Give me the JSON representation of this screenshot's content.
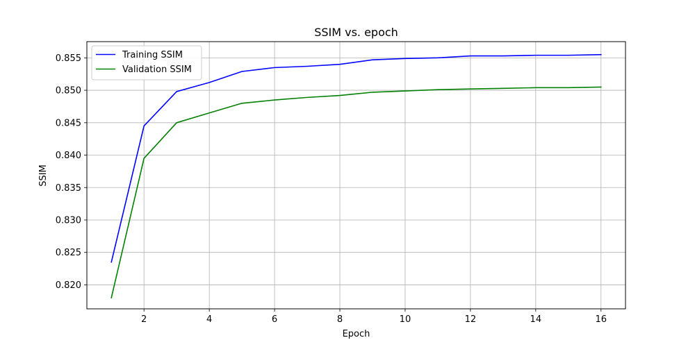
{
  "chart_data": {
    "type": "line",
    "title": "SSIM vs. epoch",
    "xlabel": "Epoch",
    "ylabel": "SSIM",
    "xlim": [
      0.25,
      16.75
    ],
    "ylim": [
      0.8163,
      0.8575
    ],
    "xticks": [
      2,
      4,
      6,
      8,
      10,
      12,
      14,
      16
    ],
    "yticks": [
      0.82,
      0.825,
      0.83,
      0.835,
      0.84,
      0.845,
      0.85,
      0.855
    ],
    "ytick_labels": [
      "0.820",
      "0.825",
      "0.830",
      "0.835",
      "0.840",
      "0.845",
      "0.850",
      "0.855"
    ],
    "grid": true,
    "legend_position": "top-left",
    "x": [
      1,
      2,
      3,
      4,
      5,
      6,
      7,
      8,
      9,
      10,
      11,
      12,
      13,
      14,
      15,
      16
    ],
    "series": [
      {
        "name": "Training SSIM",
        "color": "#0000ff",
        "values": [
          0.8235,
          0.8445,
          0.8498,
          0.8512,
          0.8529,
          0.8535,
          0.8537,
          0.854,
          0.8547,
          0.8549,
          0.855,
          0.8553,
          0.8553,
          0.8554,
          0.8554,
          0.8555
        ]
      },
      {
        "name": "Validation SSIM",
        "color": "#008000",
        "values": [
          0.818,
          0.8395,
          0.845,
          0.8465,
          0.848,
          0.8485,
          0.8489,
          0.8492,
          0.8497,
          0.8499,
          0.8501,
          0.8502,
          0.8503,
          0.8504,
          0.8504,
          0.8505
        ]
      }
    ]
  }
}
